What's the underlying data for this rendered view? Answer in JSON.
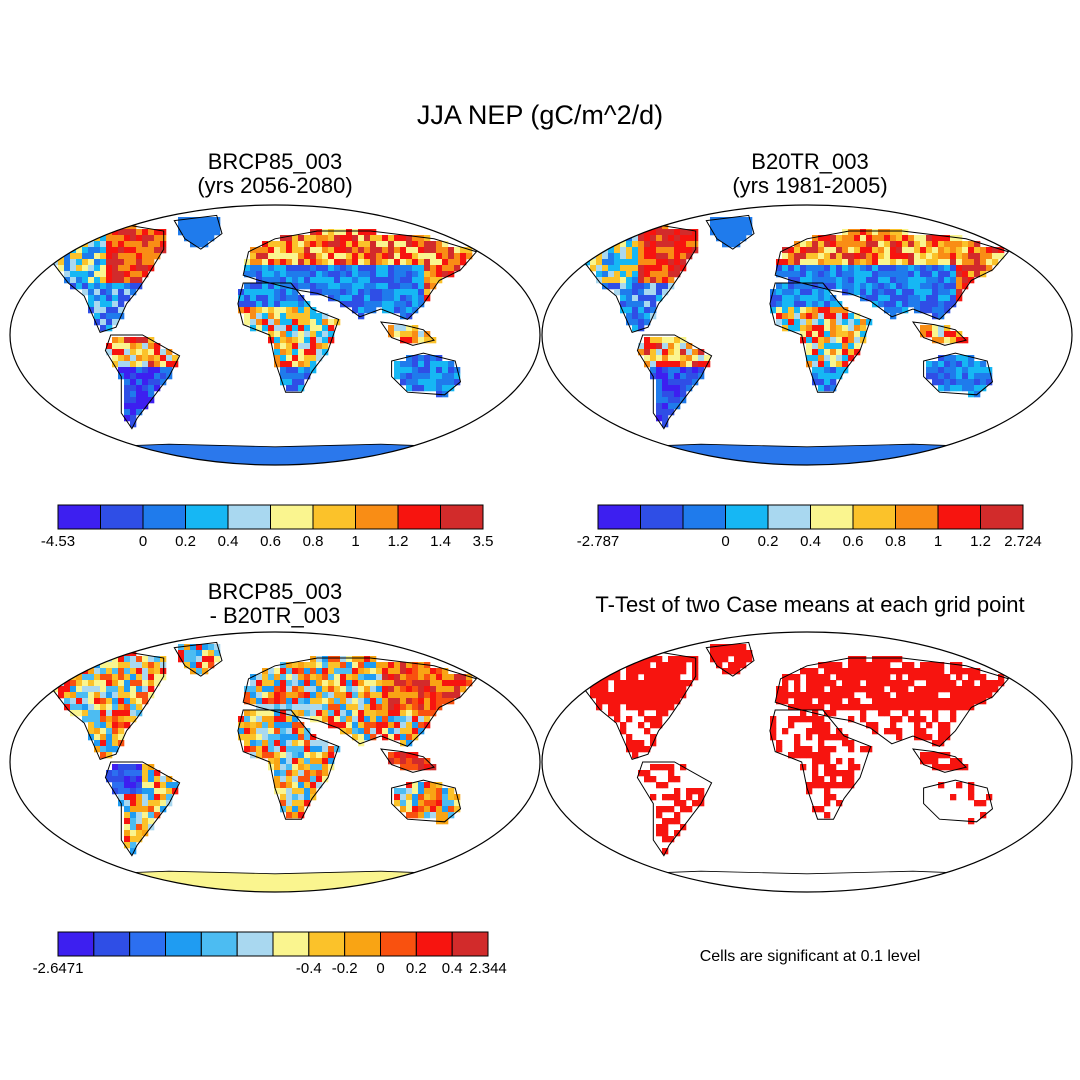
{
  "title": "JJA NEP (gC/m^2/d)",
  "panels": [
    {
      "name": "BRCP85_003",
      "subtitle": "(yrs 2056-2080)",
      "palette": [
        "#3d1ff0",
        "#2f4ee6",
        "#1f7bec",
        "#16b7f4",
        "#a9d8f0",
        "#faf58f",
        "#fbc22a",
        "#f98d15",
        "#f7140f",
        "#d22b2b"
      ],
      "colorbar_labels": [
        "-4.53",
        "0",
        "0.2",
        "0.4",
        "0.6",
        "0.8",
        "1",
        "1.2",
        "1.4",
        "3.5"
      ],
      "antarctica": "#2b78ec"
    },
    {
      "name": "B20TR_003",
      "subtitle": "(yrs 1981-2005)",
      "palette": [
        "#3d1ff0",
        "#2f4ee6",
        "#1f7bec",
        "#16b7f4",
        "#a9d8f0",
        "#faf58f",
        "#fbc22a",
        "#f98d15",
        "#f7140f",
        "#d22b2b"
      ],
      "colorbar_labels": [
        "-2.787",
        "0",
        "0.2",
        "0.4",
        "0.6",
        "0.8",
        "1",
        "1.2",
        "2.724"
      ],
      "antarctica": "#2b78ec"
    },
    {
      "name": "BRCP85_003",
      "subtitle": "- B20TR_003",
      "palette": [
        "#3d1ff0",
        "#2f4ee6",
        "#2c6ff0",
        "#1f9cf2",
        "#4cbcf2",
        "#a9d8f0",
        "#faf58f",
        "#fbc22a",
        "#f9a414",
        "#f9510f",
        "#f7140f",
        "#d22b2b"
      ],
      "colorbar_labels": [
        "-2.6471",
        "-0.4",
        "-0.2",
        "0",
        "0.2",
        "0.4",
        "2.344"
      ],
      "antarctica": "#faf58f"
    }
  ],
  "ttest": {
    "title": "T-Test of two Case means at each grid point",
    "note": "Cells are significant at 0.1 level",
    "color": "#f7140f"
  }
}
